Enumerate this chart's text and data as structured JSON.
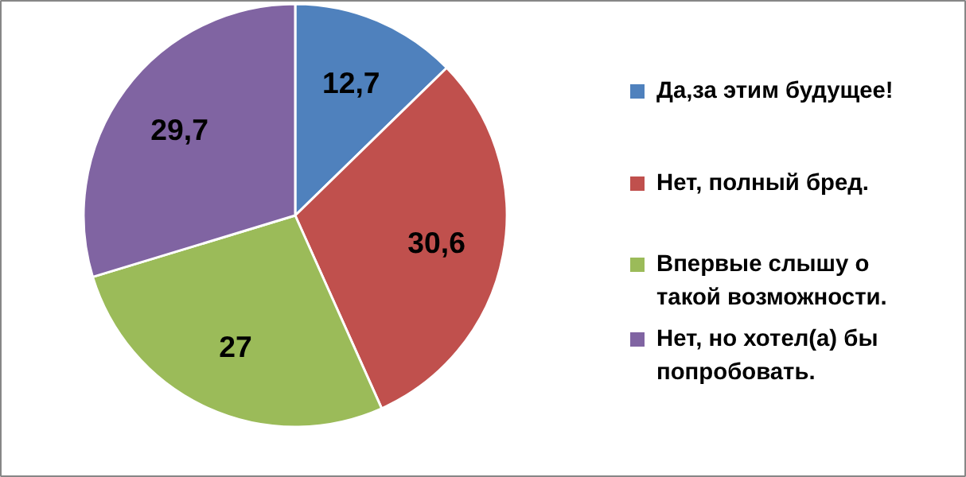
{
  "chart_data": {
    "type": "pie",
    "categories": [
      "Да,за этим будущее!",
      "Нет, полный бред.",
      "Впервые слышу о такой возможности.",
      "Нет, но хотел(а) бы попробовать."
    ],
    "values": [
      12.7,
      30.6,
      27,
      29.7
    ],
    "colors": [
      "#4f81bd",
      "#c0504d",
      "#9bbb59",
      "#8064a2"
    ],
    "value_labels": [
      "12,7",
      "30,6",
      "27",
      "29,7"
    ],
    "legend": "right"
  }
}
